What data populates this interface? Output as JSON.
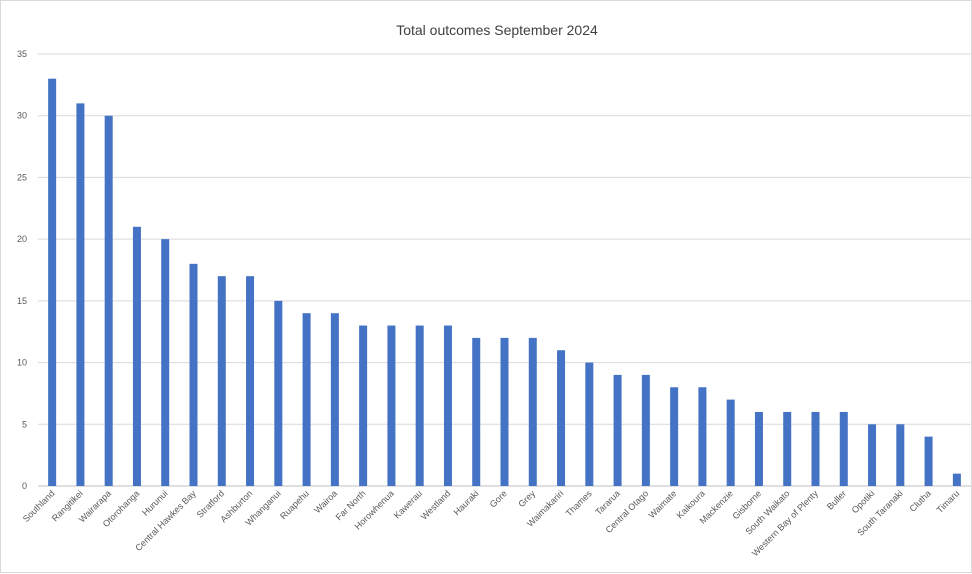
{
  "chart_data": {
    "type": "bar",
    "title": "Total outcomes September 2024",
    "xlabel": "",
    "ylabel": "",
    "ylim": [
      0,
      35
    ],
    "yticks": [
      0,
      5,
      10,
      15,
      20,
      25,
      30,
      35
    ],
    "grid": true,
    "legend": "none",
    "bar_color": "#4472c4",
    "categories": [
      "Southland",
      "Rangitikei",
      "Wairarapa",
      "Otorohanga",
      "Hurunui",
      "Central Hawkes Bay",
      "Stratford",
      "Ashburton",
      "Whanganui",
      "Ruapehu",
      "Wairoa",
      "Far North",
      "Horowhenua",
      "Kawerau",
      "Westland",
      "Hauraki",
      "Gore",
      "Grey",
      "Waimakariri",
      "Thames",
      "Tararua",
      "Central Otago",
      "Waimate",
      "Kaikoura",
      "Mackenzie",
      "Gisborne",
      "South Waikato",
      "Western Bay of Plenty",
      "Buller",
      "Opotiki",
      "South Taranaki",
      "Clutha",
      "Timaru"
    ],
    "values": [
      33,
      31,
      30,
      21,
      20,
      18,
      17,
      17,
      15,
      14,
      14,
      13,
      13,
      13,
      13,
      12,
      12,
      12,
      11,
      10,
      9,
      9,
      8,
      8,
      7,
      6,
      6,
      6,
      6,
      5,
      5,
      4,
      1
    ]
  }
}
